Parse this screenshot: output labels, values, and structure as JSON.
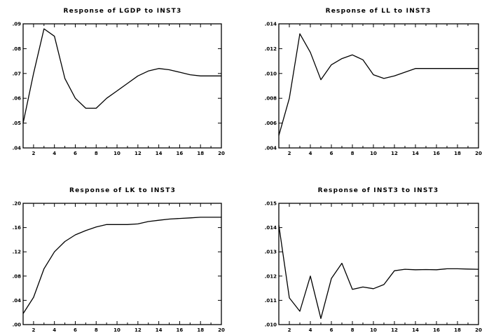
{
  "chart_data": [
    {
      "type": "line",
      "title": "Response of LGDP to INST3",
      "x": [
        1,
        2,
        3,
        4,
        5,
        6,
        7,
        8,
        9,
        10,
        11,
        12,
        13,
        14,
        15,
        16,
        17,
        18,
        19,
        20
      ],
      "series": [
        {
          "values": [
            0.05,
            0.07,
            0.088,
            0.085,
            0.068,
            0.06,
            0.056,
            0.056,
            0.06,
            0.063,
            0.066,
            0.069,
            0.071,
            0.072,
            0.0715,
            0.0705,
            0.0695,
            0.069,
            0.069,
            0.069
          ]
        }
      ],
      "xlim": [
        1,
        20
      ],
      "ylim": [
        0.04,
        0.09
      ],
      "ytick_labels": [
        ".09",
        ".08",
        ".07",
        ".06",
        ".05",
        ".04"
      ],
      "ytick_values": [
        0.09,
        0.08,
        0.07,
        0.06,
        0.05,
        0.04
      ],
      "xtick_labels": [
        "2",
        "4",
        "6",
        "8",
        "10",
        "12",
        "14",
        "16",
        "18",
        "20"
      ],
      "xtick_values": [
        2,
        4,
        6,
        8,
        10,
        12,
        14,
        16,
        18,
        20
      ],
      "minor_xticks": true
    },
    {
      "type": "line",
      "title": "Response of LL to INST3",
      "x": [
        1,
        2,
        3,
        4,
        5,
        6,
        7,
        8,
        9,
        10,
        11,
        12,
        13,
        14,
        15,
        16,
        17,
        18,
        19,
        20
      ],
      "series": [
        {
          "values": [
            0.005,
            0.008,
            0.0132,
            0.0117,
            0.0095,
            0.0107,
            0.0112,
            0.0115,
            0.0111,
            0.0099,
            0.0096,
            0.0098,
            0.0101,
            0.0104,
            0.0104,
            0.0104,
            0.0104,
            0.0104,
            0.0104,
            0.0104
          ]
        }
      ],
      "xlim": [
        1,
        20
      ],
      "ylim": [
        0.004,
        0.014
      ],
      "ytick_labels": [
        ".014",
        ".012",
        ".010",
        ".008",
        ".006",
        ".004"
      ],
      "ytick_values": [
        0.014,
        0.012,
        0.01,
        0.008,
        0.006,
        0.004
      ],
      "xtick_labels": [
        "2",
        "4",
        "6",
        "8",
        "10",
        "12",
        "14",
        "16",
        "18",
        "20"
      ],
      "xtick_values": [
        2,
        4,
        6,
        8,
        10,
        12,
        14,
        16,
        18,
        20
      ],
      "minor_xticks": true
    },
    {
      "type": "line",
      "title": "Response of LK to INST3",
      "x": [
        1,
        2,
        3,
        4,
        5,
        6,
        7,
        8,
        9,
        10,
        11,
        12,
        13,
        14,
        15,
        16,
        17,
        18,
        19,
        20
      ],
      "series": [
        {
          "values": [
            0.018,
            0.045,
            0.092,
            0.12,
            0.137,
            0.148,
            0.155,
            0.161,
            0.165,
            0.165,
            0.165,
            0.166,
            0.17,
            0.172,
            0.174,
            0.175,
            0.176,
            0.177,
            0.177,
            0.177
          ]
        }
      ],
      "xlim": [
        1,
        20
      ],
      "ylim": [
        0.0,
        0.2
      ],
      "ytick_labels": [
        ".20",
        ".16",
        ".12",
        ".08",
        ".04",
        ".00"
      ],
      "ytick_values": [
        0.2,
        0.16,
        0.12,
        0.08,
        0.04,
        0.0
      ],
      "xtick_labels": [
        "2",
        "4",
        "6",
        "8",
        "10",
        "12",
        "14",
        "16",
        "18",
        "20"
      ],
      "xtick_values": [
        2,
        4,
        6,
        8,
        10,
        12,
        14,
        16,
        18,
        20
      ],
      "minor_xticks": true
    },
    {
      "type": "line",
      "title": "Response of INST3 to INST3",
      "x": [
        1,
        2,
        3,
        4,
        5,
        6,
        7,
        8,
        9,
        10,
        11,
        12,
        13,
        14,
        15,
        16,
        17,
        18,
        19,
        20
      ],
      "series": [
        {
          "values": [
            0.0141,
            0.0111,
            0.01055,
            0.012,
            0.01025,
            0.0119,
            0.01253,
            0.01145,
            0.01155,
            0.01148,
            0.01165,
            0.01222,
            0.01228,
            0.01226,
            0.01227,
            0.01226,
            0.0123,
            0.0123,
            0.01229,
            0.01228
          ]
        }
      ],
      "xlim": [
        1,
        20
      ],
      "ylim": [
        0.01,
        0.015
      ],
      "ytick_labels": [
        ".015",
        ".014",
        ".013",
        ".012",
        ".011",
        ".010"
      ],
      "ytick_values": [
        0.015,
        0.014,
        0.013,
        0.012,
        0.011,
        0.01
      ],
      "xtick_labels": [
        "2",
        "4",
        "6",
        "8",
        "10",
        "12",
        "14",
        "16",
        "18",
        "20"
      ],
      "xtick_values": [
        2,
        4,
        6,
        8,
        10,
        12,
        14,
        16,
        18,
        20
      ],
      "minor_xticks": true
    }
  ]
}
